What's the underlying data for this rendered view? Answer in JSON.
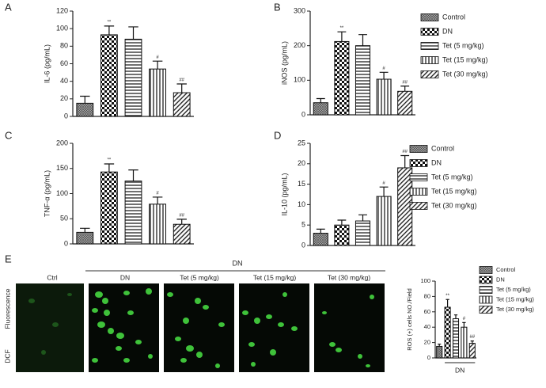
{
  "chart_data": [
    {
      "type": "bar",
      "panel_label": "A",
      "y_label": "IL-6 (pg/mL)",
      "values": [
        15,
        93,
        88,
        54,
        27
      ],
      "errors": [
        8,
        10,
        14,
        9,
        10
      ],
      "value_annotations": [
        null,
        "**",
        null,
        "#",
        "##"
      ],
      "ylim": [
        0,
        120
      ],
      "yticks": [
        0,
        20,
        40,
        60,
        80,
        100,
        120
      ],
      "legend": false
    },
    {
      "type": "bar",
      "panel_label": "B",
      "y_label": "iNOS (pg/mL)",
      "categories": [
        "Control",
        "DN",
        "Tet (5 mg/kg)",
        "Tet (15 mg/kg)",
        "Tet (30 mg/kg)"
      ],
      "values": [
        35,
        212,
        200,
        103,
        68
      ],
      "errors": [
        12,
        28,
        32,
        20,
        15
      ],
      "value_annotations": [
        null,
        "**",
        null,
        "#",
        "##"
      ],
      "ylim": [
        0,
        300
      ],
      "yticks": [
        0,
        100,
        200,
        300
      ],
      "legend": true
    },
    {
      "type": "bar",
      "panel_label": "C",
      "y_label": "TNF-α (pg/mL)",
      "values": [
        23,
        143,
        125,
        79,
        39
      ],
      "errors": [
        8,
        16,
        22,
        14,
        10
      ],
      "value_annotations": [
        null,
        "**",
        null,
        "#",
        "##"
      ],
      "ylim": [
        0,
        200
      ],
      "yticks": [
        0,
        50,
        100,
        150,
        200
      ],
      "legend": false
    },
    {
      "type": "bar",
      "panel_label": "D",
      "y_label": "IL-10 (pg/mL)",
      "categories": [
        "Control",
        "DN",
        "Tet (5 mg/kg)",
        "Tet (15 mg/kg)",
        "Tet (30 mg/kg)"
      ],
      "values": [
        3,
        5,
        6,
        12,
        19
      ],
      "errors": [
        1,
        1.2,
        1.5,
        2.3,
        3
      ],
      "value_annotations": [
        null,
        null,
        null,
        "#",
        "##"
      ],
      "ylim": [
        0,
        25
      ],
      "yticks": [
        0,
        5,
        10,
        15,
        20,
        25
      ],
      "legend": true
    },
    {
      "type": "bar",
      "panel_label": "E",
      "y_label": "ROS (+) cells NO./Field",
      "categories": [
        "Control",
        "DN",
        "Tet (5 mg/kg)",
        "Tet (15 mg/kg)",
        "Tet (30 mg/kg)"
      ],
      "values": [
        15,
        66,
        51,
        40,
        19
      ],
      "errors": [
        3,
        10,
        5,
        6,
        3
      ],
      "value_annotations": [
        null,
        "**",
        null,
        "#",
        "##"
      ],
      "ylim": [
        0,
        100
      ],
      "yticks": [
        0,
        20,
        40,
        60,
        80,
        100
      ],
      "legend": true,
      "group_label": "DN"
    }
  ],
  "image_panel": {
    "column_header": "DN",
    "columns": [
      "Ctrl",
      "DN",
      "Tet (5 mg/kg)",
      "Tet (15 mg/kg)",
      "Tet (30 mg/kg)"
    ],
    "row_label": [
      "DCF",
      "Fluorescence"
    ]
  }
}
